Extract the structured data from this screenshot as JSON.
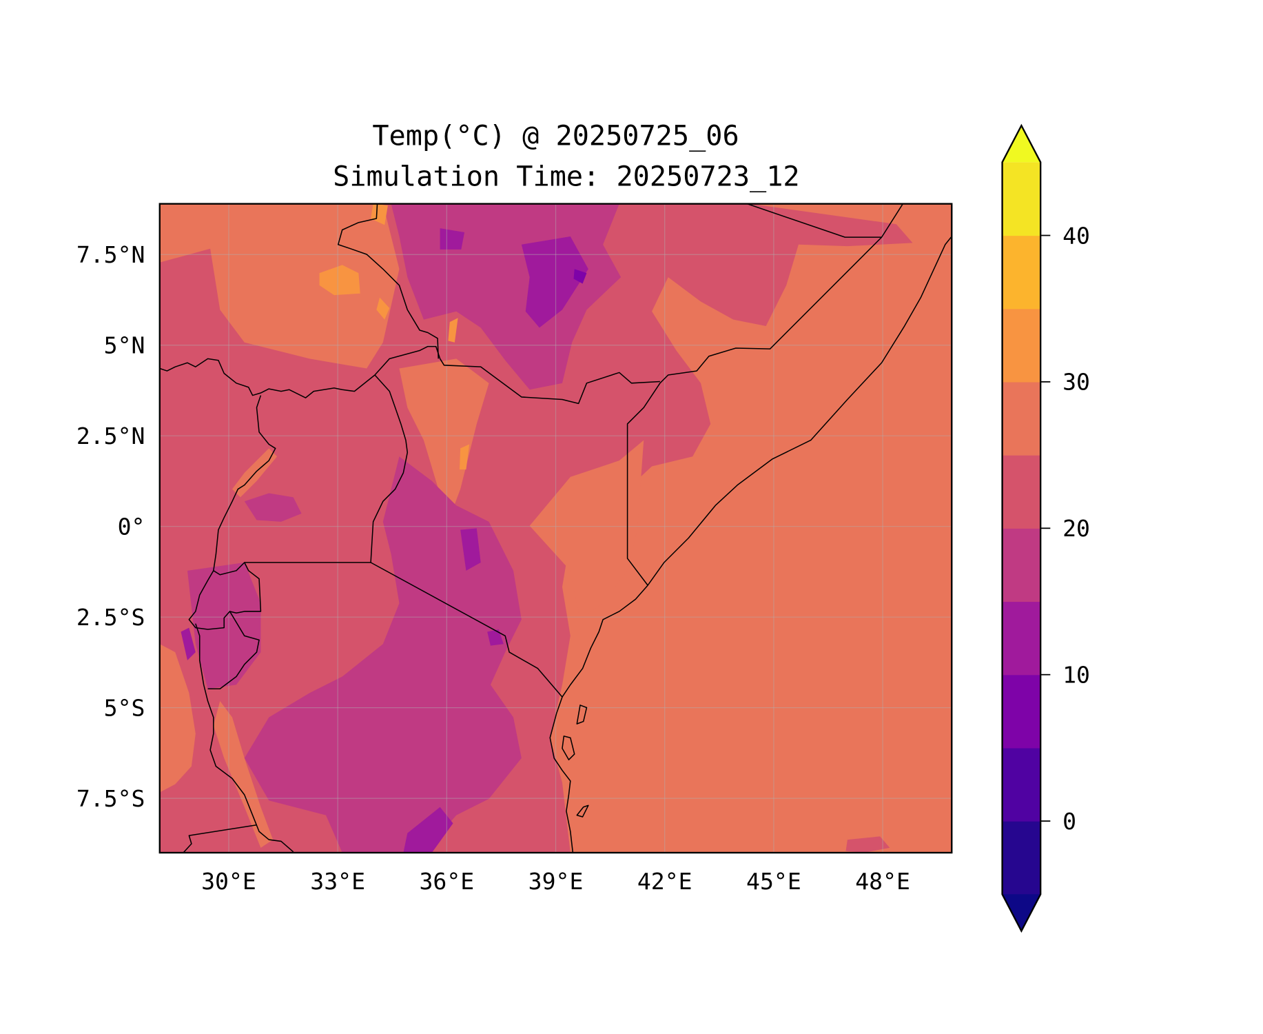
{
  "figure": {
    "title_line1": "Temp(°C) @ 20250725_06",
    "title_line2": "Simulation Time: 20250723_12"
  },
  "map": {
    "lon_range": [
      28.1,
      49.9
    ],
    "lat_range": [
      -9.0,
      8.9
    ],
    "lon_ticks": [
      {
        "value": 30,
        "label": "30°E"
      },
      {
        "value": 33,
        "label": "33°E"
      },
      {
        "value": 36,
        "label": "36°E"
      },
      {
        "value": 39,
        "label": "39°E"
      },
      {
        "value": 42,
        "label": "42°E"
      },
      {
        "value": 45,
        "label": "45°E"
      },
      {
        "value": 48,
        "label": "48°E"
      }
    ],
    "lat_ticks": [
      {
        "value": 7.5,
        "label": "7.5°N"
      },
      {
        "value": 5,
        "label": "5°N"
      },
      {
        "value": 2.5,
        "label": "2.5°N"
      },
      {
        "value": 0,
        "label": "0°"
      },
      {
        "value": -2.5,
        "label": "2.5°S"
      },
      {
        "value": -5,
        "label": "5°S"
      },
      {
        "value": -7.5,
        "label": "7.5°S"
      }
    ],
    "gridlines": true
  },
  "colorbar": {
    "levels": [
      -5,
      0,
      5,
      10,
      15,
      20,
      25,
      30,
      35,
      40,
      45
    ],
    "band_colors": [
      "#26068f",
      "#5002a2",
      "#7e03a8",
      "#a01a9c",
      "#c03a83",
      "#d5536b",
      "#e9755a",
      "#f89441",
      "#fcb42d",
      "#f4e424"
    ],
    "under_color": "#0d0887",
    "over_color": "#f0f921",
    "extend": "both",
    "ticks": [
      {
        "value": 0,
        "label": "0"
      },
      {
        "value": 10,
        "label": "10"
      },
      {
        "value": 20,
        "label": "20"
      },
      {
        "value": 30,
        "label": "30"
      },
      {
        "value": 40,
        "label": "40"
      }
    ]
  }
}
